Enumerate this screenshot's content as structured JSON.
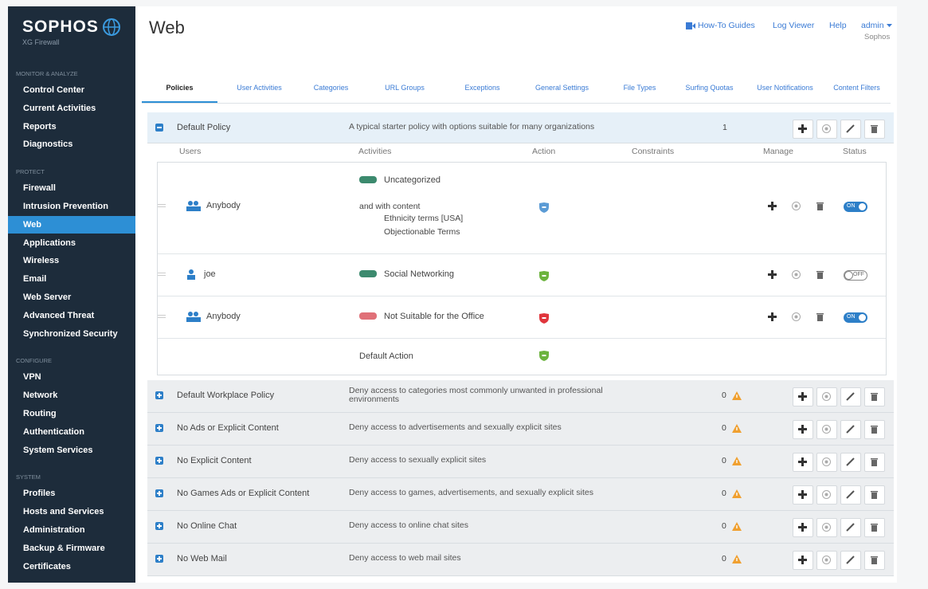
{
  "sidebar": {
    "logo": "SOPHOS",
    "product": "XG Firewall",
    "sections": [
      {
        "title": "MONITOR & ANALYZE",
        "items": [
          "Control Center",
          "Current Activities",
          "Reports",
          "Diagnostics"
        ]
      },
      {
        "title": "PROTECT",
        "items": [
          "Firewall",
          "Intrusion Prevention",
          "Web",
          "Applications",
          "Wireless",
          "Email",
          "Web Server",
          "Advanced Threat",
          "Synchronized Security"
        ],
        "selected": 2
      },
      {
        "title": "CONFIGURE",
        "items": [
          "VPN",
          "Network",
          "Routing",
          "Authentication",
          "System Services"
        ]
      },
      {
        "title": "SYSTEM",
        "items": [
          "Profiles",
          "Hosts and Services",
          "Administration",
          "Backup & Firmware",
          "Certificates"
        ]
      }
    ]
  },
  "header": {
    "title": "Web",
    "links": [
      "How-To Guides",
      "Log Viewer",
      "Help"
    ],
    "user": "admin",
    "org": "Sophos"
  },
  "tabs": {
    "items": [
      "Policies",
      "User Activities",
      "Categories",
      "URL Groups",
      "Exceptions",
      "General Settings",
      "File Types",
      "Surfing Quotas",
      "User Notifications",
      "Content Filters"
    ],
    "selected": 0
  },
  "policies": [
    {
      "name": "Default Policy",
      "description": "A typical starter policy with options suitable for many organizations",
      "count": "1",
      "expanded": true,
      "columns": [
        "Users",
        "Activities",
        "Action",
        "Constraints",
        "Manage",
        "Status"
      ],
      "rules": [
        {
          "user": "Anybody",
          "user_type": "group",
          "activity": "Uncategorized",
          "activity_type": "allow",
          "content_label": "and with content",
          "content": [
            "Ethnicity terms [USA]",
            "Objectionable Terms"
          ],
          "action": "warn",
          "status": "ON"
        },
        {
          "user": "joe",
          "user_type": "user",
          "activity": "Social Networking",
          "activity_type": "allow",
          "action": "allow",
          "status": "OFF"
        },
        {
          "user": "Anybody",
          "user_type": "group",
          "activity": "Not Suitable for the Office",
          "activity_type": "block",
          "action": "block",
          "status": "ON"
        }
      ],
      "default_action": {
        "label": "Default Action",
        "action": "allow"
      }
    },
    {
      "name": "Default Workplace Policy",
      "description": "Deny access to categories most commonly unwanted in professional environments",
      "count": "0",
      "warning": true
    },
    {
      "name": "No Ads or Explicit Content",
      "description": "Deny access to advertisements and sexually explicit sites",
      "count": "0",
      "warning": true
    },
    {
      "name": "No Explicit Content",
      "description": "Deny access to sexually explicit sites",
      "count": "0",
      "warning": true
    },
    {
      "name": "No Games Ads or Explicit Content",
      "description": "Deny access to games, advertisements, and sexually explicit sites",
      "count": "0",
      "warning": true
    },
    {
      "name": "No Online Chat",
      "description": "Deny access to online chat sites",
      "count": "0",
      "warning": true
    },
    {
      "name": "No Web Mail",
      "description": "Deny access to web mail sites",
      "count": "0",
      "warning": true
    }
  ]
}
